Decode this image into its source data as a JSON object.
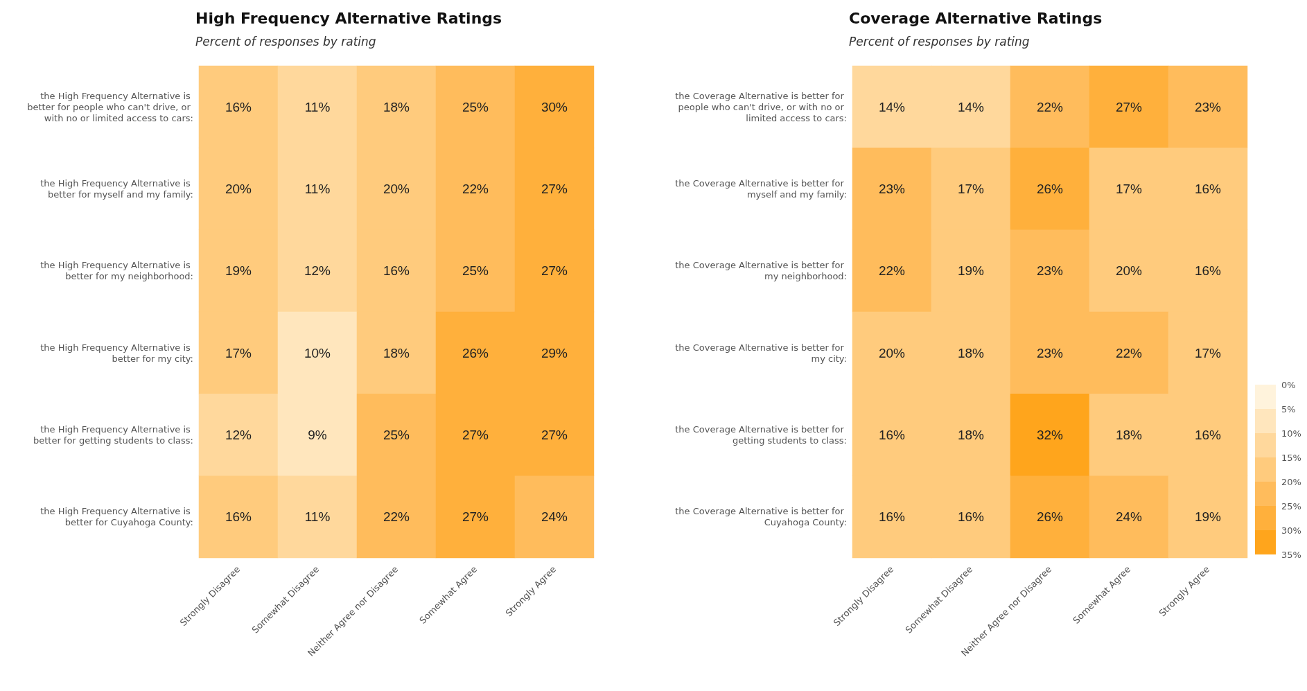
{
  "chart_data": [
    {
      "type": "heatmap",
      "title": "High Frequency Alternative Ratings",
      "subtitle": "Percent of responses by rating",
      "categories": [
        "Strongly Disagree",
        "Somewhat Disagree",
        "Neither Agree nor Disagree",
        "Somewhat Agree",
        "Strongly Agree"
      ],
      "y_categories": [
        "the High Frequency Alternative is better for people who can't drive, or with no or limited access to cars:",
        "the High Frequency Alternative is better for myself and my family:",
        "the High Frequency Alternative is better for my neighborhood:",
        "the High Frequency Alternative is better for my city:",
        "the High Frequency Alternative is better for getting students to class:",
        "the High Frequency Alternative is better for Cuyahoga County:"
      ],
      "cells": [
        [
          16,
          11,
          18,
          25,
          30
        ],
        [
          20,
          11,
          20,
          22,
          27
        ],
        [
          19,
          12,
          16,
          25,
          27
        ],
        [
          17,
          10,
          18,
          26,
          29
        ],
        [
          12,
          9,
          25,
          27,
          27
        ],
        [
          16,
          11,
          22,
          27,
          24
        ]
      ],
      "cell_labels": [
        [
          "16%",
          "11%",
          "18%",
          "25%",
          "30%"
        ],
        [
          "20%",
          "11%",
          "20%",
          "22%",
          "27%"
        ],
        [
          "19%",
          "12%",
          "16%",
          "25%",
          "27%"
        ],
        [
          "17%",
          "10%",
          "18%",
          "26%",
          "29%"
        ],
        [
          "12%",
          "9%",
          "25%",
          "27%",
          "27%"
        ],
        [
          "16%",
          "11%",
          "22%",
          "27%",
          "24%"
        ]
      ]
    },
    {
      "type": "heatmap",
      "title": "Coverage Alternative Ratings",
      "subtitle": "Percent of responses by rating",
      "categories": [
        "Strongly Disagree",
        "Somewhat Disagree",
        "Neither Agree nor Disagree",
        "Somewhat Agree",
        "Strongly Agree"
      ],
      "y_categories": [
        "the Coverage Alternative is better for people who can't drive, or with no or limited access to cars:",
        "the Coverage Alternative is better for myself and my family:",
        "the Coverage Alternative is better for my neighborhood:",
        "the Coverage Alternative is better for my city:",
        "the Coverage Alternative is better for getting students to class:",
        "the Coverage Alternative is better for Cuyahoga County:"
      ],
      "cells": [
        [
          14,
          14,
          22,
          27,
          23
        ],
        [
          23,
          17,
          26,
          17,
          16
        ],
        [
          22,
          19,
          23,
          20,
          16
        ],
        [
          20,
          18,
          23,
          22,
          17
        ],
        [
          16,
          18,
          32,
          18,
          16
        ],
        [
          16,
          16,
          26,
          24,
          19
        ]
      ],
      "cell_labels": [
        [
          "14%",
          "14%",
          "22%",
          "27%",
          "23%"
        ],
        [
          "23%",
          "17%",
          "26%",
          "17%",
          "16%"
        ],
        [
          "22%",
          "19%",
          "23%",
          "20%",
          "16%"
        ],
        [
          "20%",
          "18%",
          "23%",
          "22%",
          "17%"
        ],
        [
          "16%",
          "18%",
          "32%",
          "18%",
          "16%"
        ],
        [
          "16%",
          "16%",
          "26%",
          "24%",
          "19%"
        ]
      ],
      "clim": [
        0,
        35
      ],
      "cticks": [
        {
          "value": 0,
          "label": "0%"
        },
        {
          "value": 5,
          "label": "5%"
        },
        {
          "value": 10,
          "label": "10%"
        },
        {
          "value": 15,
          "label": "15%"
        },
        {
          "value": 20,
          "label": "20%"
        },
        {
          "value": 25,
          "label": "25%"
        },
        {
          "value": 30,
          "label": "30%"
        },
        {
          "value": 35,
          "label": "35%"
        }
      ]
    }
  ]
}
